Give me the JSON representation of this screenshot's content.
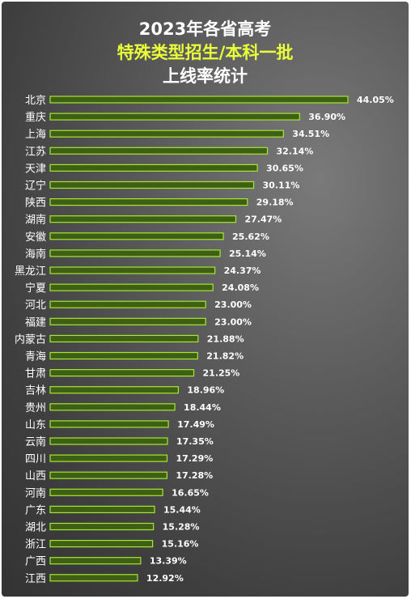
{
  "title_line1": "2023年各省高考",
  "title_line2": "特殊类型招生/本科一批",
  "title_line3": "上线率统计",
  "colors": {
    "bar_fill": "#3f5f14",
    "bar_edge": "#a6e636",
    "highlight_title": "#e8ff3a",
    "background": "#4a4a4a"
  },
  "chart_data": {
    "type": "bar",
    "orientation": "horizontal",
    "title": "2023年各省高考 特殊类型招生/本科一批 上线率统计",
    "categories": [
      "北京",
      "重庆",
      "上海",
      "江苏",
      "天津",
      "辽宁",
      "陕西",
      "湖南",
      "安徽",
      "海南",
      "黑龙江",
      "宁夏",
      "河北",
      "福建",
      "内蒙古",
      "青海",
      "甘肃",
      "吉林",
      "贵州",
      "山东",
      "云南",
      "四川",
      "山西",
      "河南",
      "广东",
      "湖北",
      "浙江",
      "广西",
      "江西"
    ],
    "values": [
      44.05,
      36.9,
      34.51,
      32.14,
      30.65,
      30.11,
      29.18,
      27.47,
      25.62,
      25.14,
      24.37,
      24.08,
      23.0,
      23.0,
      21.88,
      21.82,
      21.25,
      18.96,
      18.44,
      17.49,
      17.35,
      17.29,
      17.28,
      16.65,
      15.44,
      15.28,
      15.16,
      13.39,
      12.92
    ],
    "labels": [
      "44.05%",
      "36.90%",
      "34.51%",
      "32.14%",
      "30.65%",
      "30.11%",
      "29.18%",
      "27.47%",
      "25.62%",
      "25.14%",
      "24.37%",
      "24.08%",
      "23.00%",
      "23.00%",
      "21.88%",
      "21.82%",
      "21.25%",
      "18.96%",
      "18.44%",
      "17.49%",
      "17.35%",
      "17.29%",
      "17.28%",
      "16.65%",
      "15.44%",
      "15.28%",
      "15.16%",
      "13.39%",
      "12.92%"
    ],
    "unit": "%",
    "legend": "none",
    "grid": false
  }
}
